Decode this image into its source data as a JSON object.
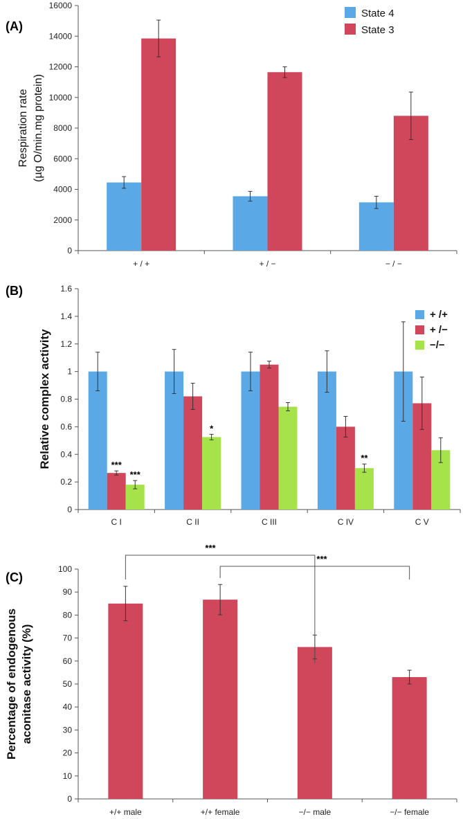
{
  "chart_data": [
    {
      "panel_label": "(A)",
      "type": "bar",
      "ylabel_lines": [
        "Respiration rate",
        "(µg O/min.mg protein)"
      ],
      "ylim": [
        0,
        16000
      ],
      "yticks": [
        0,
        2000,
        4000,
        6000,
        8000,
        10000,
        12000,
        14000,
        16000
      ],
      "categories": [
        "+ / +",
        "+ / −",
        "− / −"
      ],
      "legend_position": "top-right",
      "series": [
        {
          "name": "State 4",
          "color": "#5aa9e6",
          "values": [
            4450,
            3550,
            3150
          ],
          "errors": [
            380,
            320,
            400
          ]
        },
        {
          "name": "State 3",
          "color": "#d0465a",
          "values": [
            13850,
            11650,
            8800
          ],
          "errors": [
            1200,
            350,
            1550
          ]
        }
      ],
      "annotations": []
    },
    {
      "panel_label": "(B)",
      "type": "bar",
      "ylabel_lines": [
        "Relative complex activity"
      ],
      "ylim": [
        0,
        1.6
      ],
      "yticks": [
        0,
        0.2,
        0.4,
        0.6,
        0.8,
        1,
        1.2,
        1.4,
        1.6
      ],
      "categories": [
        "C I",
        "C II",
        "C III",
        "C IV",
        "C V"
      ],
      "legend_position": "top-right",
      "series": [
        {
          "name": "+ /+",
          "color": "#5aa9e6",
          "values": [
            1,
            1,
            1,
            1,
            1
          ],
          "errors": [
            0.14,
            0.16,
            0.14,
            0.15,
            0.36
          ]
        },
        {
          "name": "+ /−",
          "color": "#d0465a",
          "values": [
            0.265,
            0.82,
            1.05,
            0.6,
            0.77
          ],
          "errors": [
            0.015,
            0.095,
            0.025,
            0.075,
            0.19
          ]
        },
        {
          "name": "−/−",
          "color": "#a6e34a",
          "values": [
            0.18,
            0.525,
            0.745,
            0.3,
            0.43
          ],
          "errors": [
            0.03,
            0.02,
            0.03,
            0.03,
            0.09
          ]
        }
      ],
      "annotations": [
        {
          "category": 0,
          "series": 1,
          "text": "***"
        },
        {
          "category": 0,
          "series": 2,
          "text": "***"
        },
        {
          "category": 1,
          "series": 2,
          "text": "*"
        },
        {
          "category": 3,
          "series": 2,
          "text": "**"
        }
      ]
    },
    {
      "panel_label": "(C)",
      "type": "bar",
      "ylabel_lines": [
        "Percentage of endogenous",
        "aconitase activity (%)"
      ],
      "ylim": [
        0,
        100
      ],
      "yticks": [
        0,
        10,
        20,
        30,
        40,
        50,
        60,
        70,
        80,
        90,
        100
      ],
      "categories": [
        "+/+ male",
        "+/+ female",
        "−/− male",
        "−/− female"
      ],
      "series": [
        {
          "color": "#d0465a",
          "values": [
            85,
            86.7,
            66.1,
            53
          ],
          "errors": [
            7.5,
            6.6,
            5.2,
            3
          ]
        }
      ],
      "brackets": [
        {
          "from": 0,
          "to": 2,
          "text": "***"
        },
        {
          "from": 1,
          "to": 3,
          "text": "***"
        }
      ]
    }
  ]
}
